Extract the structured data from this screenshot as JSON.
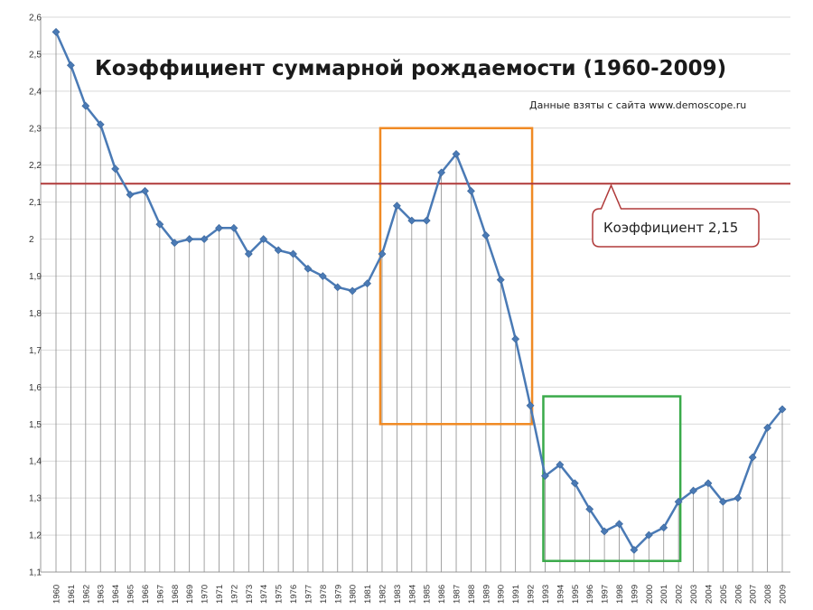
{
  "chart_data": {
    "type": "line",
    "title": "Коэффициент суммарной рождаемости (1960-2009)",
    "subtitle": "Данные взяты с сайта www.demoscope.ru",
    "xlabel": "",
    "ylabel": "",
    "ylim": [
      1.1,
      2.6
    ],
    "yticks": [
      "1,1",
      "1,2",
      "1,3",
      "1,4",
      "1,5",
      "1,6",
      "1,7",
      "1,8",
      "1,9",
      "2",
      "2,1",
      "2,2",
      "2,3",
      "2,4",
      "2,5",
      "2,6"
    ],
    "grid": "horizontal",
    "x": [
      "1960",
      "1961",
      "1962",
      "1963",
      "1964",
      "1965",
      "1966",
      "1967",
      "1968",
      "1969",
      "1970",
      "1971",
      "1972",
      "1973",
      "1974",
      "1975",
      "1976",
      "1977",
      "1978",
      "1979",
      "1980",
      "1981",
      "1982",
      "1983",
      "1984",
      "1985",
      "1986",
      "1987",
      "1988",
      "1989",
      "1990",
      "1991",
      "1992",
      "1993",
      "1994",
      "1995",
      "1996",
      "1997",
      "1998",
      "1999",
      "2000",
      "2001",
      "2002",
      "2003",
      "2004",
      "2005",
      "2006",
      "2007",
      "2008",
      "2009"
    ],
    "series": [
      {
        "color": "#4a7ab5",
        "values": [
          2.56,
          2.47,
          2.36,
          2.31,
          2.19,
          2.12,
          2.13,
          2.04,
          1.99,
          2.0,
          2.0,
          2.03,
          2.03,
          1.96,
          2.0,
          1.97,
          1.96,
          1.92,
          1.9,
          1.87,
          1.86,
          1.88,
          1.96,
          2.09,
          2.05,
          2.05,
          2.18,
          2.23,
          2.13,
          2.01,
          1.89,
          1.73,
          1.55,
          1.36,
          1.39,
          1.34,
          1.27,
          1.21,
          1.23,
          1.16,
          1.2,
          1.22,
          1.29,
          1.32,
          1.34,
          1.29,
          1.3,
          1.41,
          1.49,
          1.54
        ]
      }
    ],
    "reference_line": {
      "value": 2.15,
      "color": "#b03a3a"
    },
    "callout": {
      "text": "Коэффициент  2,15",
      "anchor_x": "1998",
      "value": 2.15
    },
    "highlights": [
      {
        "color": "#f08a24",
        "x_from": "1982",
        "x_to": "1992",
        "y_from": 1.5,
        "y_to": 2.3
      },
      {
        "color": "#3aaa4a",
        "x_from": "1993",
        "x_to": "2002",
        "y_from": 1.13,
        "y_to": 1.575
      }
    ]
  }
}
